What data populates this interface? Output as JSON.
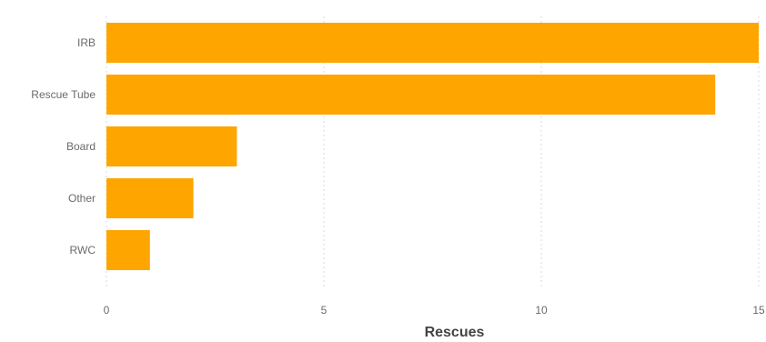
{
  "chart_data": {
    "type": "bar",
    "orientation": "horizontal",
    "categories": [
      "IRB",
      "Rescue Tube",
      "Board",
      "Other",
      "RWC"
    ],
    "values": [
      15,
      14,
      3,
      2,
      1
    ],
    "xlabel": "Rescues",
    "ylabel": "",
    "xlim": [
      0,
      15
    ],
    "xticks": [
      "0",
      "5",
      "10",
      "15"
    ],
    "grid": true,
    "bar_color": "#FFA500"
  }
}
